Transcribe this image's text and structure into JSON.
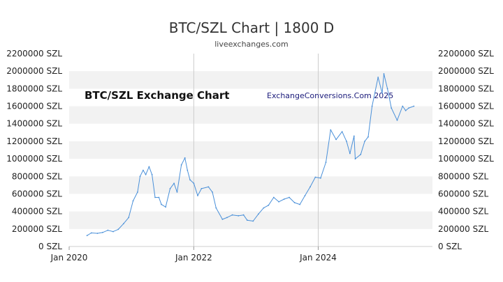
{
  "chart_data": {
    "type": "line",
    "title": "BTC/SZL Chart | 1800 D",
    "subtitle": "liveexchanges.com",
    "annotations": [
      "BTC/SZL Exchange Chart",
      "ExchangeConversions.Com 2025"
    ],
    "y_unit": "SZL",
    "ylim": [
      0,
      2200000
    ],
    "y_ticks": [
      "0 SZL",
      "200000 SZL",
      "400000 SZL",
      "600000 SZL",
      "800000 SZL",
      "1000000 SZL",
      "1200000 SZL",
      "1400000 SZL",
      "1600000 SZL",
      "1800000 SZL",
      "2000000 SZL",
      "2200000 SZL"
    ],
    "x_ticks": [
      "Jan 2020",
      "Jan 2022",
      "Jan 2024"
    ],
    "x_tick_dates": [
      "2020-01-01",
      "2022-01-01",
      "2024-01-01"
    ],
    "xlim": [
      "2020-01-01",
      "2025-11-01"
    ],
    "grid": "alternating horizontal bands",
    "series": [
      {
        "color": "#4a90d9",
        "points": [
          [
            "2020-04-15",
            125000
          ],
          [
            "2020-05-10",
            155000
          ],
          [
            "2020-06-15",
            150000
          ],
          [
            "2020-07-15",
            160000
          ],
          [
            "2020-08-15",
            185000
          ],
          [
            "2020-09-15",
            170000
          ],
          [
            "2020-10-15",
            195000
          ],
          [
            "2020-11-15",
            260000
          ],
          [
            "2020-12-15",
            330000
          ],
          [
            "2021-01-10",
            520000
          ],
          [
            "2021-02-05",
            620000
          ],
          [
            "2021-02-20",
            800000
          ],
          [
            "2021-03-10",
            870000
          ],
          [
            "2021-03-25",
            820000
          ],
          [
            "2021-04-14",
            910000
          ],
          [
            "2021-05-01",
            820000
          ],
          [
            "2021-05-19",
            560000
          ],
          [
            "2021-06-10",
            560000
          ],
          [
            "2021-06-25",
            480000
          ],
          [
            "2021-07-20",
            450000
          ],
          [
            "2021-08-15",
            660000
          ],
          [
            "2021-09-07",
            720000
          ],
          [
            "2021-09-25",
            620000
          ],
          [
            "2021-10-20",
            930000
          ],
          [
            "2021-11-10",
            1010000
          ],
          [
            "2021-11-25",
            870000
          ],
          [
            "2021-12-10",
            760000
          ],
          [
            "2022-01-01",
            720000
          ],
          [
            "2022-01-24",
            580000
          ],
          [
            "2022-02-15",
            660000
          ],
          [
            "2022-03-28",
            680000
          ],
          [
            "2022-04-20",
            620000
          ],
          [
            "2022-05-12",
            440000
          ],
          [
            "2022-06-18",
            310000
          ],
          [
            "2022-07-15",
            330000
          ],
          [
            "2022-08-15",
            360000
          ],
          [
            "2022-09-20",
            350000
          ],
          [
            "2022-10-20",
            360000
          ],
          [
            "2022-11-10",
            300000
          ],
          [
            "2022-12-15",
            290000
          ],
          [
            "2023-01-15",
            370000
          ],
          [
            "2023-02-15",
            440000
          ],
          [
            "2023-03-15",
            470000
          ],
          [
            "2023-04-15",
            560000
          ],
          [
            "2023-05-15",
            510000
          ],
          [
            "2023-06-15",
            540000
          ],
          [
            "2023-07-15",
            560000
          ],
          [
            "2023-08-15",
            500000
          ],
          [
            "2023-09-15",
            480000
          ],
          [
            "2023-10-15",
            580000
          ],
          [
            "2023-11-15",
            680000
          ],
          [
            "2023-12-15",
            790000
          ],
          [
            "2024-01-15",
            780000
          ],
          [
            "2024-02-15",
            960000
          ],
          [
            "2024-03-14",
            1330000
          ],
          [
            "2024-04-15",
            1220000
          ],
          [
            "2024-05-20",
            1310000
          ],
          [
            "2024-06-15",
            1200000
          ],
          [
            "2024-07-05",
            1060000
          ],
          [
            "2024-07-29",
            1260000
          ],
          [
            "2024-08-05",
            1000000
          ],
          [
            "2024-09-06",
            1050000
          ],
          [
            "2024-09-30",
            1200000
          ],
          [
            "2024-10-20",
            1250000
          ],
          [
            "2024-11-12",
            1600000
          ],
          [
            "2024-12-17",
            1930000
          ],
          [
            "2025-01-10",
            1750000
          ],
          [
            "2025-01-20",
            1970000
          ],
          [
            "2025-02-10",
            1800000
          ],
          [
            "2025-03-05",
            1580000
          ],
          [
            "2025-04-08",
            1440000
          ],
          [
            "2025-05-10",
            1600000
          ],
          [
            "2025-05-28",
            1550000
          ],
          [
            "2025-06-15",
            1580000
          ],
          [
            "2025-07-15",
            1600000
          ]
        ]
      }
    ]
  }
}
